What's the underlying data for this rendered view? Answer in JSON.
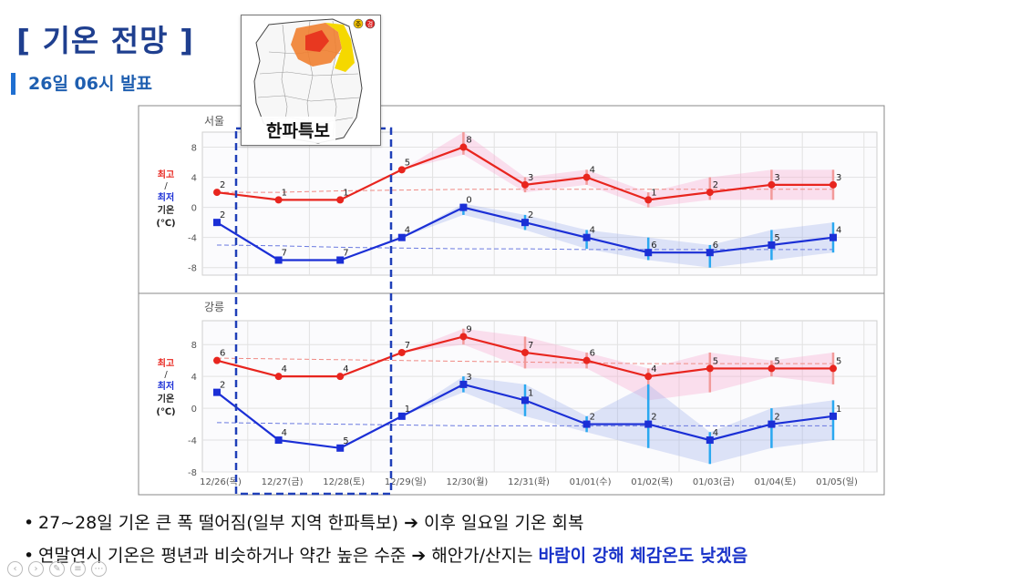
{
  "page": {
    "title": "[ 기온 전망 ]",
    "subtitle": "26일 06시 발표",
    "map_label": "한파특보",
    "map_legend": [
      "주",
      "경"
    ],
    "nav_icons": [
      "prev-icon",
      "next-icon",
      "edit-icon",
      "menu-icon",
      "more-icon"
    ]
  },
  "bullets": [
    {
      "parts": [
        {
          "text": "27~28일 기온 큰 폭 떨어짐(일부 지역 한파특보) ",
          "style": "normal"
        },
        {
          "text": "➔",
          "style": "arrow"
        },
        {
          "text": " 이후 일요일 기온 회복",
          "style": "normal"
        }
      ]
    },
    {
      "parts": [
        {
          "text": "연말연시 기온은 평년과 비슷하거나 약간 높은 수준 ",
          "style": "normal"
        },
        {
          "text": "➔",
          "style": "arrow"
        },
        {
          "text": " 해안가/산지는 ",
          "style": "normal"
        },
        {
          "text": "바람이 강해 체감온도 낮겠음",
          "style": "highlight"
        }
      ]
    }
  ],
  "chart_data": [
    {
      "type": "line",
      "title": "서울",
      "legend": {
        "max": "최고",
        "slash": "/",
        "min": "최저",
        "temp": "기온",
        "unit": "(℃)"
      },
      "categories": [
        "12/26(목)",
        "12/27(금)",
        "12/28(토)",
        "12/29(일)",
        "12/30(월)",
        "12/31(화)",
        "01/01(수)",
        "01/02(목)",
        "01/03(금)",
        "01/04(토)",
        "01/05(일)"
      ],
      "yticks": [
        8,
        4,
        0,
        -4,
        -8
      ],
      "ylim": [
        -9,
        10
      ],
      "series": [
        {
          "name": "최고",
          "values": [
            2,
            1,
            1,
            5,
            8,
            3,
            4,
            1,
            2,
            3,
            3
          ],
          "color": "#e8251e",
          "marker": "circle"
        },
        {
          "name": "최저",
          "values": [
            -2,
            -7,
            -7,
            -4,
            0,
            -2,
            -4,
            -6,
            -6,
            -5,
            -4
          ],
          "color": "#1b2fd6",
          "marker": "square"
        }
      ],
      "normal_max": [
        2.0,
        2.0,
        2.2,
        2.3,
        2.4,
        2.4,
        2.4,
        2.4,
        2.4,
        2.4,
        2.4
      ],
      "normal_min": [
        -5.0,
        -5.1,
        -5.3,
        -5.4,
        -5.5,
        -5.5,
        -5.6,
        -5.6,
        -5.6,
        -5.6,
        -5.6
      ],
      "max_range": [
        null,
        null,
        null,
        null,
        [
          7,
          10
        ],
        [
          2,
          4
        ],
        [
          3,
          5
        ],
        [
          0,
          2
        ],
        [
          1,
          4
        ],
        [
          1,
          5
        ],
        [
          1,
          5
        ]
      ],
      "min_range": [
        null,
        null,
        null,
        null,
        [
          -1,
          0.5
        ],
        [
          -3,
          -1
        ],
        [
          -5.5,
          -3
        ],
        [
          -7,
          -4
        ],
        [
          -8,
          -5
        ],
        [
          -7,
          -3
        ],
        [
          -6,
          -2
        ]
      ]
    },
    {
      "type": "line",
      "title": "강릉",
      "legend": {
        "max": "최고",
        "slash": "/",
        "min": "최저",
        "temp": "기온",
        "unit": "(℃)"
      },
      "categories": [
        "12/26(목)",
        "12/27(금)",
        "12/28(토)",
        "12/29(일)",
        "12/30(월)",
        "12/31(화)",
        "01/01(수)",
        "01/02(목)",
        "01/03(금)",
        "01/04(토)",
        "01/05(일)"
      ],
      "yticks": [
        8,
        4,
        0,
        -4,
        -8
      ],
      "ylim": [
        -8,
        11
      ],
      "series": [
        {
          "name": "최고",
          "values": [
            6,
            4,
            4,
            7,
            9,
            7,
            6,
            4,
            5,
            5,
            5
          ],
          "color": "#e8251e",
          "marker": "circle"
        },
        {
          "name": "최저",
          "values": [
            2,
            -4,
            -5,
            -1,
            3,
            1,
            -2,
            -2,
            -4,
            -2,
            -1
          ],
          "color": "#1b2fd6",
          "marker": "square"
        }
      ],
      "normal_max": [
        6.3,
        6.2,
        6.1,
        6.0,
        5.9,
        5.8,
        5.7,
        5.6,
        5.6,
        5.6,
        5.6
      ],
      "normal_min": [
        -1.8,
        -1.9,
        -2.0,
        -2.1,
        -2.2,
        -2.2,
        -2.2,
        -2.2,
        -2.2,
        -2.2,
        -2.2
      ],
      "max_range": [
        null,
        null,
        null,
        null,
        [
          8,
          10
        ],
        [
          5,
          9
        ],
        [
          5,
          7
        ],
        [
          1,
          5
        ],
        [
          2,
          7
        ],
        [
          4,
          6
        ],
        [
          3,
          7
        ]
      ],
      "min_range": [
        null,
        null,
        null,
        null,
        [
          2,
          4
        ],
        [
          -1,
          3
        ],
        [
          -3,
          -1
        ],
        [
          -5,
          3
        ],
        [
          -7,
          -3
        ],
        [
          -5,
          0
        ],
        [
          -4,
          1
        ]
      ]
    }
  ]
}
